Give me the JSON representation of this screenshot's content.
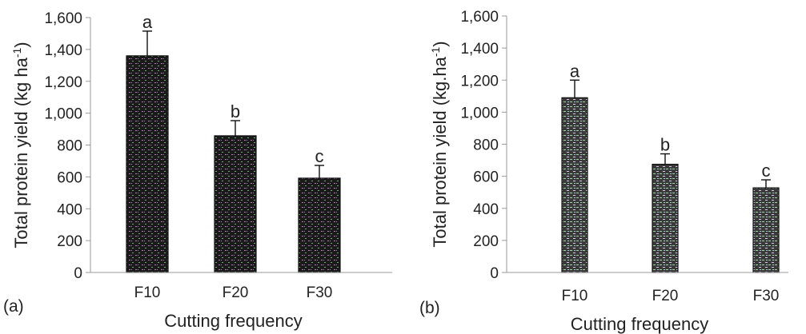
{
  "chart_data": [
    {
      "type": "bar",
      "panel_label": "(a)",
      "categories": [
        "F10",
        "F20",
        "F30"
      ],
      "values": [
        1360,
        858,
        592
      ],
      "errors": [
        155,
        95,
        80
      ],
      "significance": [
        "a",
        "b",
        "c"
      ],
      "title": "",
      "xlabel": "Cutting frequency",
      "ylabel": "Total protein yield (kg ha",
      "ylabel_sup": "-1",
      "ylabel_tail": ")",
      "ylim": [
        0,
        1600
      ],
      "yticks": [
        "0",
        "200",
        "400",
        "600",
        "800",
        "1,000",
        "1,200",
        "1,400",
        "1,600"
      ],
      "grid": false,
      "legend": "none",
      "bar_pattern": "dark"
    },
    {
      "type": "bar",
      "panel_label": "(b)",
      "categories": [
        "F10",
        "F20",
        "F30"
      ],
      "values": [
        1090,
        675,
        528
      ],
      "errors": [
        110,
        65,
        50
      ],
      "significance": [
        "a",
        "b",
        "c"
      ],
      "title": "",
      "xlabel": "Cutting frequency",
      "ylabel": "Total protein yield (kg.ha",
      "ylabel_sup": "-1",
      "ylabel_tail": ")",
      "ylim": [
        0,
        1600
      ],
      "yticks": [
        "0",
        "200",
        "400",
        "600",
        "800",
        "1,000",
        "1,200",
        "1,400",
        "1,600"
      ],
      "grid": false,
      "legend": "none",
      "bar_pattern": "light"
    }
  ]
}
